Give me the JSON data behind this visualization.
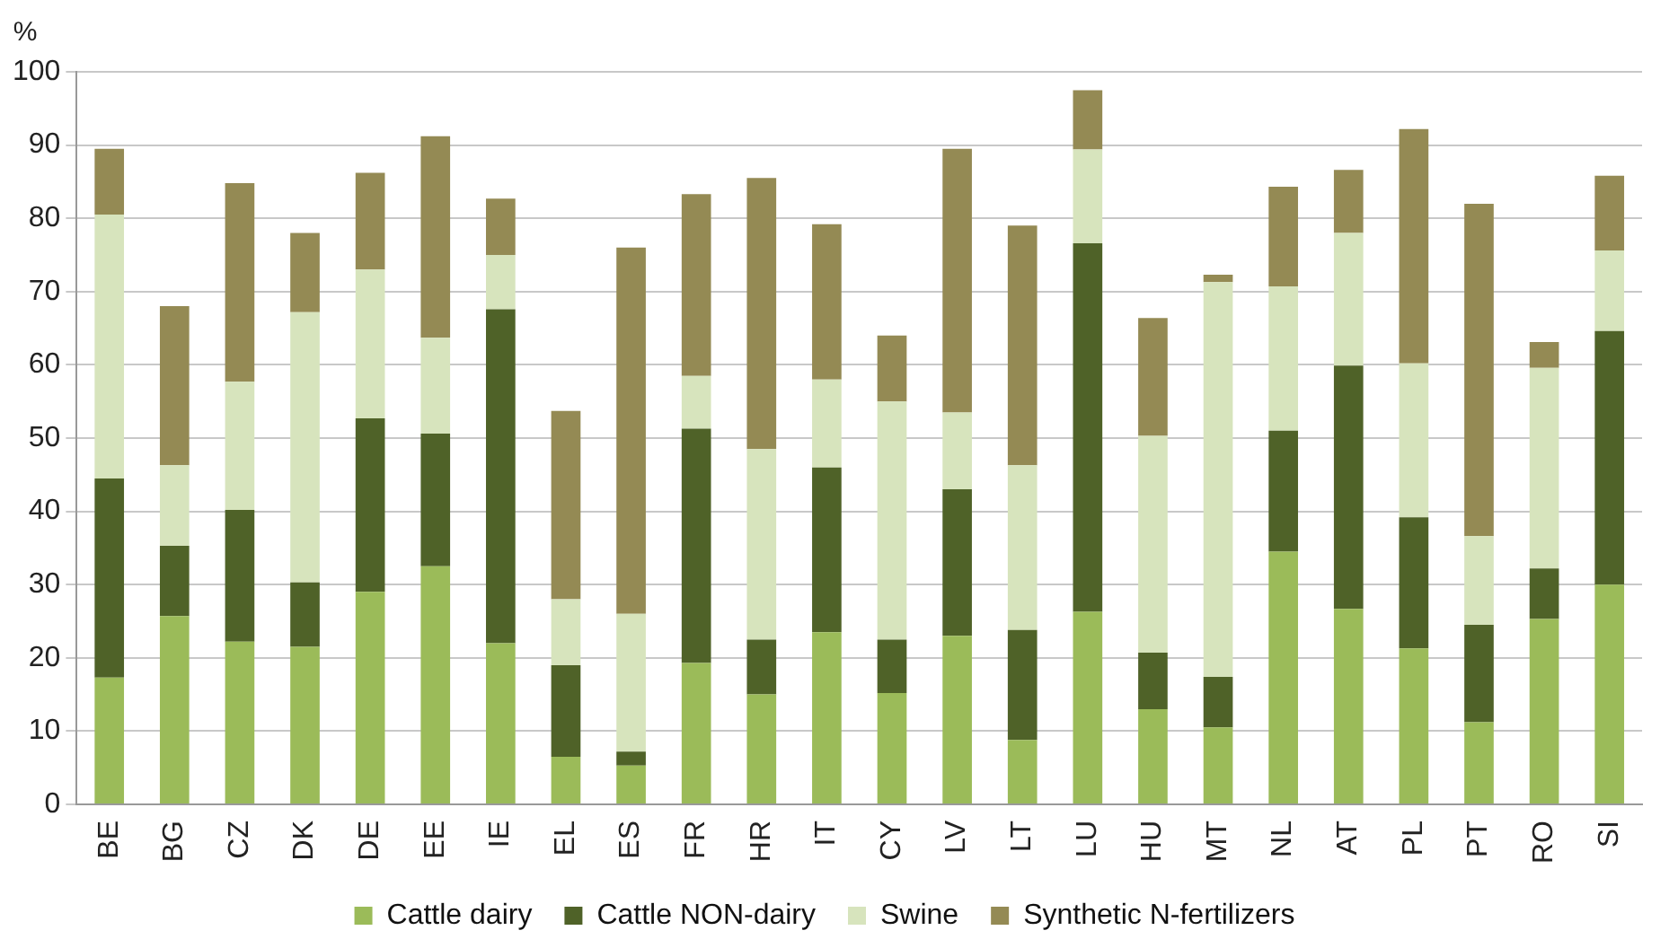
{
  "chart_data": {
    "type": "bar",
    "stacked": true,
    "ylabel": "%",
    "categories": [
      "BE",
      "BG",
      "CZ",
      "DK",
      "DE",
      "EE",
      "IE",
      "EL",
      "ES",
      "FR",
      "HR",
      "IT",
      "CY",
      "LV",
      "LT",
      "LU",
      "HU",
      "MT",
      "NL",
      "AT",
      "PL",
      "PT",
      "RO",
      "SI"
    ],
    "series": [
      {
        "name": "Cattle dairy",
        "color": "#9bbb59",
        "values": [
          17.3,
          25.7,
          22.2,
          21.5,
          29,
          32.5,
          22,
          6.5,
          5.3,
          19.3,
          15,
          23.5,
          15.2,
          23,
          8.8,
          26.3,
          13,
          10.5,
          34.5,
          26.7,
          21.3,
          11.2,
          25.3,
          30
        ]
      },
      {
        "name": "Cattle NON-dairy",
        "color": "#4f6228",
        "values": [
          27.2,
          9.6,
          18,
          8.8,
          23.7,
          18.1,
          45.6,
          12.5,
          1.9,
          32,
          7.5,
          22.5,
          7.3,
          20,
          15,
          50.3,
          7.7,
          6.9,
          16.5,
          33.2,
          17.9,
          13.3,
          6.9,
          34.6
        ]
      },
      {
        "name": "Swine",
        "color": "#d7e4bd",
        "values": [
          36,
          11,
          17.5,
          36.9,
          20.3,
          13.1,
          7.4,
          9,
          18.8,
          7.2,
          26,
          12,
          32.5,
          10.5,
          22.5,
          12.8,
          29.6,
          53.9,
          19.7,
          18.1,
          21,
          12.1,
          27.4,
          11
        ]
      },
      {
        "name": "Synthetic N-fertilizers",
        "color": "#948a54",
        "values": [
          9,
          21.7,
          27.1,
          10.8,
          13.2,
          27.5,
          7.7,
          25.7,
          50,
          24.8,
          37,
          21.2,
          9,
          36,
          32.7,
          8.1,
          16.1,
          1,
          13.6,
          8.6,
          32,
          45.4,
          3.5,
          10.2
        ]
      }
    ],
    "ylim": [
      0,
      100
    ],
    "yticks": [
      0,
      10,
      20,
      30,
      40,
      50,
      60,
      70,
      80,
      90,
      100
    ],
    "grid": "y",
    "legend": "bottom"
  }
}
